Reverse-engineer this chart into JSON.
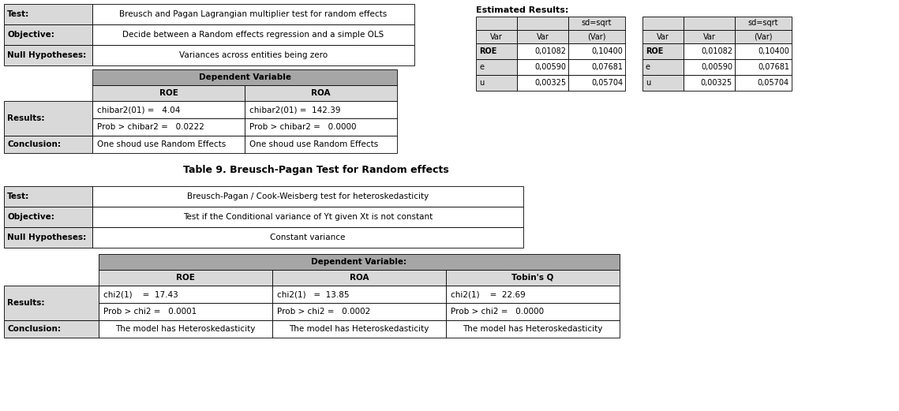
{
  "bg_color": "#ffffff",
  "header_gray": "#a6a6a6",
  "light_gray": "#d9d9d9",
  "white": "#ffffff",
  "t9_info_rows": [
    [
      "Test:",
      "Breusch and Pagan Lagrangian multiplier test for random effects"
    ],
    [
      "Objective:",
      "Decide between a Random effects regression and a simple OLS"
    ],
    [
      "Null Hypotheses:",
      "Variances across entities being zero"
    ]
  ],
  "t9_dep_header": "Dependent Variable",
  "t9_col_headers": [
    "ROE",
    "ROA"
  ],
  "t9_results_rows": [
    [
      "chibar2(01) =   4.04",
      "chibar2(01) =  142.39"
    ],
    [
      "Prob > chibar2 =   0.0222",
      "Prob > chibar2 =   0.0000"
    ]
  ],
  "t9_conclusion": [
    "One shoud use Random Effects",
    "One shoud use Random Effects"
  ],
  "est_title": "Estimated Results:",
  "est_rows": [
    [
      "ROE",
      "0,01082",
      "0,10400"
    ],
    [
      "e",
      "0,00590",
      "0,07681"
    ],
    [
      "u",
      "0,00325",
      "0,05704"
    ]
  ],
  "title_table9": "Table 9. Breusch-Pagan Test for Random effects",
  "t10_info_rows": [
    [
      "Test:",
      "Breusch-Pagan / Cook-Weisberg test for heteroskedasticity"
    ],
    [
      "Objective:",
      "Test if the Conditional variance of Yt given Xt is not constant"
    ],
    [
      "Null Hypotheses:",
      "Constant variance"
    ]
  ],
  "t10_dep_header": "Dependent Variable:",
  "t10_col_headers": [
    "ROE",
    "ROA",
    "Tobin's Q"
  ],
  "t10_results_rows": [
    [
      "chi2(1)    =  17.43",
      "chi2(1)   =  13.85",
      "chi2(1)    =  22.69"
    ],
    [
      "Prob > chi2 =   0.0001",
      "Prob > chi2 =   0.0002",
      "Prob > chi2 =   0.0000"
    ]
  ],
  "t10_conclusion": [
    "The model has Heteroskedasticity",
    "The model has Heteroskedasticity",
    "The model has Heteroskedasticity"
  ]
}
